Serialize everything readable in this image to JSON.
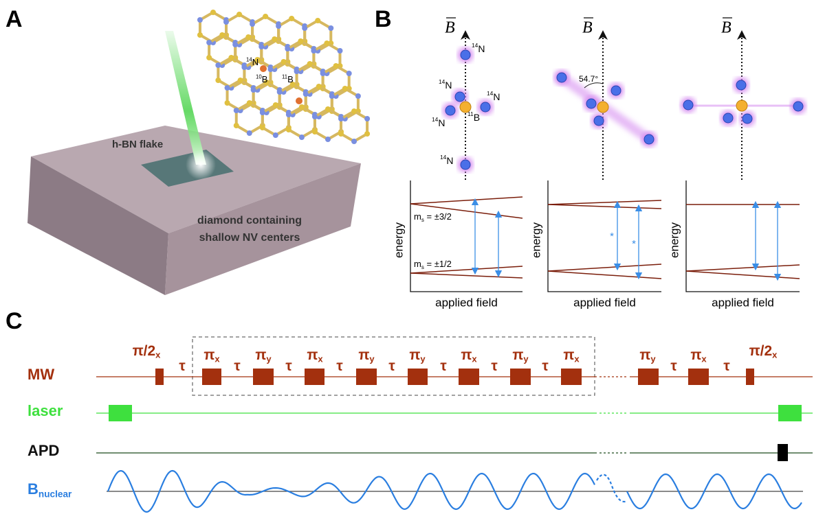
{
  "panel_labels": [
    "A",
    "B",
    "C"
  ],
  "panel_a": {
    "flake_label": "h-BN flake",
    "substrate_label": [
      "diamond containing",
      "shallow NV centers"
    ],
    "lattice_labels": [
      {
        "sup": "14",
        "base": "N"
      },
      {
        "sup": "10",
        "base": "B"
      },
      {
        "sup": "11",
        "base": "B"
      }
    ]
  },
  "panel_b": {
    "field_labels": [
      "B",
      "B",
      "B"
    ],
    "atom_labels": [
      {
        "sup": "14",
        "base": "N"
      },
      {
        "sup": "14",
        "base": "N"
      },
      {
        "sup": "14",
        "base": "N"
      },
      {
        "sup": "14",
        "base": "N"
      },
      {
        "sup": "14",
        "base": "N"
      },
      {
        "sup": "11",
        "base": "B"
      }
    ],
    "angle_label": "54.7°",
    "plots": [
      {
        "y_label": "energy",
        "x_label": "applied field"
      },
      {
        "y_label": "energy",
        "x_label": "applied field"
      },
      {
        "y_label": "energy",
        "x_label": "applied field"
      }
    ],
    "state_labels": [
      {
        "base": "m",
        "sub": "s",
        "rest": " = ±3/2"
      },
      {
        "base": "m",
        "sub": "s",
        "rest": " = ±1/2"
      }
    ],
    "markers": [
      "*",
      "*"
    ]
  },
  "panel_c": {
    "channels": [
      "MW",
      "laser",
      "APD",
      {
        "base": "B",
        "sub": "nuclear"
      }
    ],
    "pulse_labels": [
      {
        "base": "π/2",
        "sub": "x"
      },
      {
        "base": "τ"
      },
      {
        "base": "π",
        "sub": "x"
      },
      {
        "base": "τ"
      },
      {
        "base": "π",
        "sub": "y"
      },
      {
        "base": "τ"
      },
      {
        "base": "π",
        "sub": "x"
      },
      {
        "base": "τ"
      },
      {
        "base": "π",
        "sub": "y"
      },
      {
        "base": "τ"
      },
      {
        "base": "π",
        "sub": "y"
      },
      {
        "base": "τ"
      },
      {
        "base": "π",
        "sub": "x"
      },
      {
        "base": "τ"
      },
      {
        "base": "π",
        "sub": "y"
      },
      {
        "base": "τ"
      },
      {
        "base": "π",
        "sub": "x"
      },
      {
        "base": "π",
        "sub": "y"
      },
      {
        "base": "τ"
      },
      {
        "base": "π",
        "sub": "x"
      },
      {
        "base": "τ"
      },
      {
        "base": "π/2",
        "sub": "x"
      }
    ]
  }
}
